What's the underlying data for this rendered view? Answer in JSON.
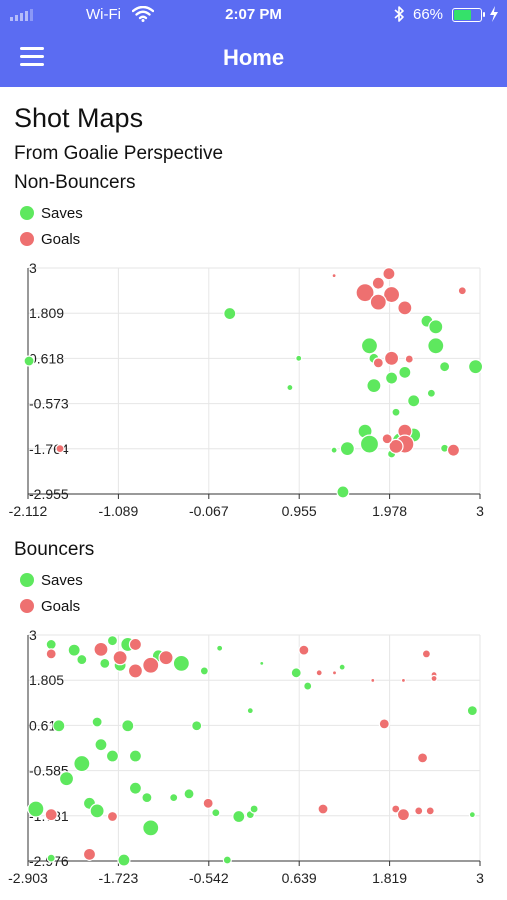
{
  "status_bar": {
    "carrier": "Wi-Fi",
    "time": "2:07 PM",
    "battery_percent": "66%",
    "battery_level": 0.66,
    "battery_color": "#35e16a"
  },
  "nav": {
    "title": "Home",
    "menu_icon": "hamburger-menu-icon"
  },
  "page": {
    "title": "Shot Maps",
    "subtitle": "From Goalie Perspective"
  },
  "colors": {
    "header": "#5b6cf2",
    "saves": "#5ee85e",
    "goals": "#ee7070",
    "grid": "#e6e6e6"
  },
  "sections": [
    {
      "title": "Non-Bouncers",
      "legend": [
        {
          "label": "Saves",
          "color": "#5ee85e"
        },
        {
          "label": "Goals",
          "color": "#ee7070"
        }
      ]
    },
    {
      "title": "Bouncers",
      "legend": [
        {
          "label": "Saves",
          "color": "#5ee85e"
        },
        {
          "label": "Goals",
          "color": "#ee7070"
        }
      ]
    }
  ],
  "chart_data": [
    {
      "type": "scatter",
      "xlim": [
        -2.112,
        3
      ],
      "ylim": [
        -2.955,
        3
      ],
      "x_ticks": [
        "-2.112",
        "-1.089",
        "-0.067",
        "0.955",
        "1.978",
        "3"
      ],
      "y_ticks": [
        "3",
        "1.809",
        "0.618",
        "-0.573",
        "-1.764",
        "-2.955"
      ],
      "grid": true,
      "series": [
        {
          "name": "Saves",
          "color": "#5ee85e",
          "points": [
            [
              0.17,
              1.8,
              3
            ],
            [
              2.4,
              1.6,
              3
            ],
            [
              2.5,
              1.45,
              3.5
            ],
            [
              1.75,
              0.95,
              4
            ],
            [
              2.5,
              0.95,
              4
            ],
            [
              1.8,
              0.62,
              2.5
            ],
            [
              0.95,
              0.62,
              1.5
            ],
            [
              2.95,
              0.4,
              3.5
            ],
            [
              2.15,
              0.25,
              3
            ],
            [
              2.6,
              0.4,
              2.5
            ],
            [
              2.0,
              0.1,
              3
            ],
            [
              1.8,
              -0.1,
              3.5
            ],
            [
              0.85,
              -0.15,
              1.5
            ],
            [
              2.45,
              -0.3,
              2
            ],
            [
              2.25,
              -0.5,
              3
            ],
            [
              2.05,
              -0.8,
              2
            ],
            [
              1.7,
              -1.3,
              3.5
            ],
            [
              2.1,
              -1.55,
              4
            ],
            [
              2.25,
              -1.4,
              3.5
            ],
            [
              1.75,
              -1.64,
              4.5
            ],
            [
              1.5,
              -1.76,
              3.5
            ],
            [
              1.35,
              -1.8,
              1.5
            ],
            [
              2.6,
              -1.75,
              2
            ],
            [
              2.0,
              -1.9,
              2
            ],
            [
              1.45,
              -2.9,
              3
            ],
            [
              -2.1,
              0.55,
              2.5
            ]
          ]
        },
        {
          "name": "Goals",
          "color": "#ee7070",
          "points": [
            [
              1.35,
              2.8,
              1
            ],
            [
              1.97,
              2.85,
              3
            ],
            [
              1.85,
              2.6,
              3
            ],
            [
              1.7,
              2.35,
              4.5
            ],
            [
              2.0,
              2.3,
              4
            ],
            [
              1.85,
              2.1,
              4
            ],
            [
              2.15,
              1.95,
              3.5
            ],
            [
              2.8,
              2.4,
              2
            ],
            [
              2.0,
              0.62,
              3.5
            ],
            [
              1.85,
              0.5,
              2.5
            ],
            [
              2.2,
              0.6,
              2
            ],
            [
              2.15,
              -1.3,
              3.5
            ],
            [
              2.15,
              -1.64,
              4.5
            ],
            [
              2.05,
              -1.7,
              3.5
            ],
            [
              1.95,
              -1.5,
              2.5
            ],
            [
              2.7,
              -1.8,
              3
            ],
            [
              -1.75,
              -1.76,
              2
            ]
          ]
        }
      ]
    },
    {
      "type": "scatter",
      "xlim": [
        -2.903,
        3
      ],
      "ylim": [
        -2.976,
        3
      ],
      "x_ticks": [
        "-2.903",
        "-1.723",
        "-0.542",
        "0.639",
        "1.819",
        "3"
      ],
      "y_ticks": [
        "3",
        "1.805",
        "0.61",
        "-0.585",
        "-1.781",
        "-2.976"
      ],
      "grid": true,
      "series": [
        {
          "name": "Saves",
          "color": "#5ee85e",
          "points": [
            [
              -2.6,
              2.75,
              2.5
            ],
            [
              -2.3,
              2.6,
              3
            ],
            [
              -2.2,
              2.35,
              2.5
            ],
            [
              -1.8,
              2.85,
              2.5
            ],
            [
              -1.9,
              2.25,
              2.5
            ],
            [
              -1.7,
              2.2,
              3
            ],
            [
              -1.6,
              2.75,
              3.5
            ],
            [
              -1.2,
              2.45,
              3
            ],
            [
              -0.9,
              2.25,
              4
            ],
            [
              -0.6,
              2.05,
              2
            ],
            [
              -0.4,
              2.65,
              1.5
            ],
            [
              0.15,
              2.25,
              1
            ],
            [
              0.6,
              2.0,
              2.5
            ],
            [
              0.75,
              1.65,
              2
            ],
            [
              1.2,
              2.15,
              1.5
            ],
            [
              2.9,
              1.0,
              2.5
            ],
            [
              0.0,
              1.0,
              1.5
            ],
            [
              -0.7,
              0.6,
              2.5
            ],
            [
              -1.6,
              0.6,
              3
            ],
            [
              -2.0,
              0.7,
              2.5
            ],
            [
              -2.5,
              0.6,
              3
            ],
            [
              -2.4,
              -0.8,
              3.5
            ],
            [
              -1.95,
              0.1,
              3
            ],
            [
              -2.2,
              -0.4,
              4
            ],
            [
              -1.8,
              -0.2,
              3
            ],
            [
              -1.5,
              -0.2,
              3
            ],
            [
              -1.5,
              -1.05,
              3
            ],
            [
              -1.35,
              -1.3,
              2.5
            ],
            [
              -0.8,
              -1.2,
              2.5
            ],
            [
              -1.0,
              -1.3,
              2
            ],
            [
              -2.1,
              -1.45,
              3
            ],
            [
              -2.0,
              -1.65,
              3.5
            ],
            [
              -1.3,
              -2.1,
              4
            ],
            [
              -2.8,
              -1.6,
              4
            ],
            [
              -0.15,
              -1.8,
              3
            ],
            [
              0.0,
              -1.75,
              2
            ],
            [
              0.05,
              -1.6,
              2
            ],
            [
              -0.45,
              -1.7,
              2
            ],
            [
              -0.3,
              -2.95,
              2
            ],
            [
              2.9,
              -1.75,
              1.5
            ],
            [
              -2.6,
              -2.9,
              2
            ],
            [
              -1.65,
              -2.95,
              3
            ]
          ]
        },
        {
          "name": "Goals",
          "color": "#ee7070",
          "points": [
            [
              -1.95,
              2.62,
              3.5
            ],
            [
              -1.7,
              2.4,
              3.5
            ],
            [
              -1.5,
              2.75,
              3
            ],
            [
              -1.3,
              2.2,
              4
            ],
            [
              -1.1,
              2.4,
              3.5
            ],
            [
              -1.5,
              2.05,
              3.5
            ],
            [
              0.7,
              2.6,
              2.5
            ],
            [
              0.9,
              2.0,
              1.5
            ],
            [
              1.1,
              2.0,
              1
            ],
            [
              1.6,
              1.8,
              1
            ],
            [
              2.0,
              1.8,
              1
            ],
            [
              1.75,
              0.65,
              2.5
            ],
            [
              2.4,
              1.95,
              1.5
            ],
            [
              2.4,
              1.85,
              1.5
            ],
            [
              2.3,
              2.5,
              2
            ],
            [
              2.25,
              -0.25,
              2.5
            ],
            [
              2.2,
              -1.65,
              2
            ],
            [
              1.9,
              -1.6,
              2
            ],
            [
              2.0,
              -1.75,
              3
            ],
            [
              2.35,
              -1.65,
              2
            ],
            [
              0.95,
              -1.6,
              2.5
            ],
            [
              -2.1,
              -2.8,
              3
            ],
            [
              -2.6,
              2.5,
              2.5
            ],
            [
              -1.8,
              -1.8,
              2.5
            ],
            [
              -0.55,
              -1.45,
              2.5
            ],
            [
              -2.6,
              -1.75,
              3
            ]
          ]
        }
      ]
    }
  ]
}
